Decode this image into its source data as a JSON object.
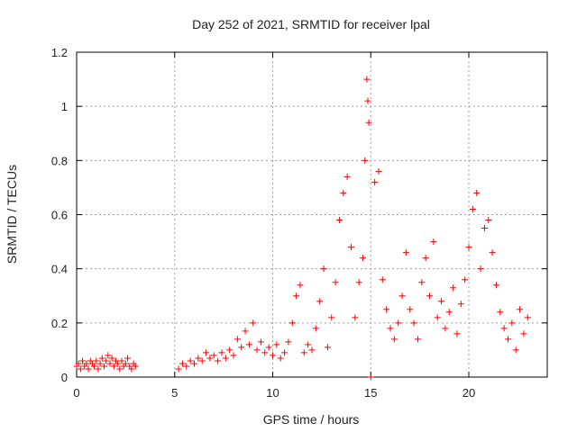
{
  "chart_data": {
    "type": "scatter",
    "title": "Day 252 of 2021, SRMTID for receiver lpal",
    "xlabel": "GPS time / hours",
    "ylabel": "SRMTID / TECUs",
    "xlim": [
      0,
      24
    ],
    "ylim": [
      0,
      1.2
    ],
    "xticks": [
      0,
      5,
      10,
      15,
      20
    ],
    "xtick_labels": [
      "0",
      "5",
      "10",
      "15",
      "20"
    ],
    "yticks": [
      0,
      0.2,
      0.4,
      0.6,
      0.8,
      1.0,
      1.2
    ],
    "ytick_labels": [
      "0",
      "0.2",
      "0.4",
      "0.6",
      "0.8",
      "1",
      "1.2"
    ],
    "grid": true,
    "marker": "+",
    "series": [
      {
        "name": "SRMTID",
        "color": "#ff0000",
        "points": [
          [
            0.0,
            0.04
          ],
          [
            0.1,
            0.05
          ],
          [
            0.2,
            0.03
          ],
          [
            0.3,
            0.06
          ],
          [
            0.4,
            0.04
          ],
          [
            0.5,
            0.05
          ],
          [
            0.6,
            0.03
          ],
          [
            0.7,
            0.06
          ],
          [
            0.8,
            0.05
          ],
          [
            0.9,
            0.04
          ],
          [
            1.0,
            0.06
          ],
          [
            1.1,
            0.03
          ],
          [
            1.2,
            0.05
          ],
          [
            1.3,
            0.07
          ],
          [
            1.4,
            0.04
          ],
          [
            1.5,
            0.06
          ],
          [
            1.6,
            0.08
          ],
          [
            1.7,
            0.05
          ],
          [
            1.8,
            0.07
          ],
          [
            1.9,
            0.04
          ],
          [
            2.0,
            0.06
          ],
          [
            2.1,
            0.05
          ],
          [
            2.2,
            0.03
          ],
          [
            2.3,
            0.06
          ],
          [
            2.4,
            0.04
          ],
          [
            2.5,
            0.05
          ],
          [
            2.6,
            0.07
          ],
          [
            2.7,
            0.04
          ],
          [
            2.8,
            0.03
          ],
          [
            2.9,
            0.05
          ],
          [
            3.0,
            0.04
          ],
          [
            5.2,
            0.03
          ],
          [
            5.4,
            0.05
          ],
          [
            5.6,
            0.04
          ],
          [
            5.8,
            0.06
          ],
          [
            6.0,
            0.05
          ],
          [
            6.2,
            0.07
          ],
          [
            6.4,
            0.06
          ],
          [
            6.6,
            0.09
          ],
          [
            6.8,
            0.07
          ],
          [
            7.0,
            0.08
          ],
          [
            7.2,
            0.06
          ],
          [
            7.4,
            0.09
          ],
          [
            7.6,
            0.07
          ],
          [
            7.8,
            0.1
          ],
          [
            8.0,
            0.08
          ],
          [
            8.2,
            0.14
          ],
          [
            8.4,
            0.11
          ],
          [
            8.6,
            0.17
          ],
          [
            8.8,
            0.12
          ],
          [
            9.0,
            0.2
          ],
          [
            9.2,
            0.1
          ],
          [
            9.4,
            0.13
          ],
          [
            9.6,
            0.09
          ],
          [
            9.8,
            0.11
          ],
          [
            10.0,
            0.08
          ],
          [
            10.2,
            0.12
          ],
          [
            10.4,
            0.07
          ],
          [
            10.6,
            0.09
          ],
          [
            10.8,
            0.13
          ],
          [
            11.0,
            0.2
          ],
          [
            11.2,
            0.3
          ],
          [
            11.4,
            0.34
          ],
          [
            11.6,
            0.09
          ],
          [
            11.8,
            0.12
          ],
          [
            12.0,
            0.1
          ],
          [
            12.2,
            0.18
          ],
          [
            12.4,
            0.28
          ],
          [
            12.6,
            0.4
          ],
          [
            12.8,
            0.11
          ],
          [
            13.0,
            0.22
          ],
          [
            13.2,
            0.35
          ],
          [
            13.4,
            0.58
          ],
          [
            13.6,
            0.68
          ],
          [
            13.8,
            0.74
          ],
          [
            14.0,
            0.48
          ],
          [
            14.2,
            0.22
          ],
          [
            14.4,
            0.35
          ],
          [
            14.6,
            0.44
          ],
          [
            14.7,
            0.8
          ],
          [
            14.8,
            1.1
          ],
          [
            14.85,
            1.02
          ],
          [
            14.9,
            0.94
          ],
          [
            15.0,
            0.0
          ],
          [
            15.2,
            0.72
          ],
          [
            15.4,
            0.76
          ],
          [
            15.6,
            0.36
          ],
          [
            15.8,
            0.25
          ],
          [
            16.0,
            0.18
          ],
          [
            16.2,
            0.14
          ],
          [
            16.4,
            0.2
          ],
          [
            16.6,
            0.3
          ],
          [
            16.8,
            0.46
          ],
          [
            17.0,
            0.25
          ],
          [
            17.2,
            0.2
          ],
          [
            17.4,
            0.14
          ],
          [
            17.6,
            0.35
          ],
          [
            17.8,
            0.44
          ],
          [
            18.0,
            0.3
          ],
          [
            18.2,
            0.5
          ],
          [
            18.4,
            0.22
          ],
          [
            18.6,
            0.28
          ],
          [
            18.8,
            0.18
          ],
          [
            19.0,
            0.24
          ],
          [
            19.2,
            0.33
          ],
          [
            19.4,
            0.16
          ],
          [
            19.6,
            0.27
          ],
          [
            19.8,
            0.36
          ],
          [
            20.0,
            0.48
          ],
          [
            20.2,
            0.62
          ],
          [
            20.4,
            0.68
          ],
          [
            20.6,
            0.4
          ],
          [
            20.8,
            0.55
          ],
          [
            21.0,
            0.58
          ],
          [
            21.2,
            0.46
          ],
          [
            21.4,
            0.34
          ],
          [
            21.6,
            0.24
          ],
          [
            21.8,
            0.18
          ],
          [
            22.0,
            0.14
          ],
          [
            22.2,
            0.2
          ],
          [
            22.4,
            0.1
          ],
          [
            22.6,
            0.25
          ],
          [
            22.8,
            0.16
          ],
          [
            23.0,
            0.22
          ]
        ]
      }
    ]
  }
}
